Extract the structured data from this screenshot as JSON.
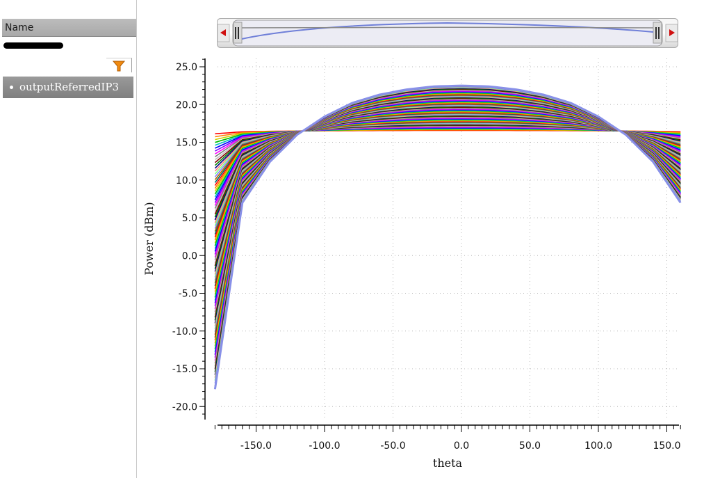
{
  "sidebar": {
    "header_label": "Name",
    "tree_items": [
      {
        "label": "outputReferredIP3"
      }
    ],
    "filter_icon": "funnel-icon"
  },
  "overview": {
    "left_arrow_icon": "arrow-left-icon",
    "right_arrow_icon": "arrow-right-icon",
    "grip_icon": "drag-handle-icon"
  },
  "chart_data": {
    "type": "line",
    "title": "",
    "xlabel": "theta",
    "ylabel": "Power (dBm)",
    "xlim": [
      -180,
      160
    ],
    "ylim": [
      -21,
      26
    ],
    "x_ticks": [
      -150,
      -100,
      -50,
      0,
      50,
      100,
      150
    ],
    "x_tick_labels": [
      "-150.0",
      "-100.0",
      "-50.0",
      "0.0",
      "50.0",
      "100.0",
      "150.0"
    ],
    "y_ticks": [
      25,
      20,
      15,
      10,
      5,
      0,
      -5,
      -10,
      -15,
      -20
    ],
    "y_tick_labels": [
      "25.0",
      "20.0",
      "15.0",
      "10.0",
      "5.0",
      "0.0",
      "-5.0",
      "-10.0",
      "-15.0",
      "-20.0"
    ],
    "grid": true,
    "series_count": 90,
    "family_description": "parametric sweep of curves",
    "x": [
      -180,
      -160,
      -140,
      -120,
      -100,
      -80,
      -60,
      -40,
      -20,
      0,
      20,
      40,
      60,
      80,
      100,
      120,
      140,
      160
    ],
    "series": [
      {
        "values": [
          16.5,
          16.5,
          16.5,
          16.5,
          16.5,
          16.5,
          16.5,
          16.5,
          16.5,
          16.5,
          16.5,
          16.5,
          16.5,
          16.5,
          16.5,
          16.5,
          16.5,
          16.5
        ]
      },
      {
        "values": [
          -17.7,
          7.0,
          12.4,
          16.0,
          18.4,
          20.2,
          21.3,
          22.0,
          22.4,
          22.5,
          22.4,
          22.0,
          21.3,
          20.2,
          18.4,
          16.0,
          12.4,
          7.0
        ]
      }
    ],
    "palette": [
      "#ff0000",
      "#ff7f00",
      "#d0d000",
      "#00c000",
      "#00c0c0",
      "#0000ff",
      "#8000ff",
      "#ff00ff",
      "#808080",
      "#c0c0c0",
      "#800000",
      "#008000",
      "#000080",
      "#ff8080",
      "#80ff80",
      "#8080ff",
      "#b36b00",
      "#006b6b"
    ],
    "top_curve_color": "#8890e8"
  }
}
